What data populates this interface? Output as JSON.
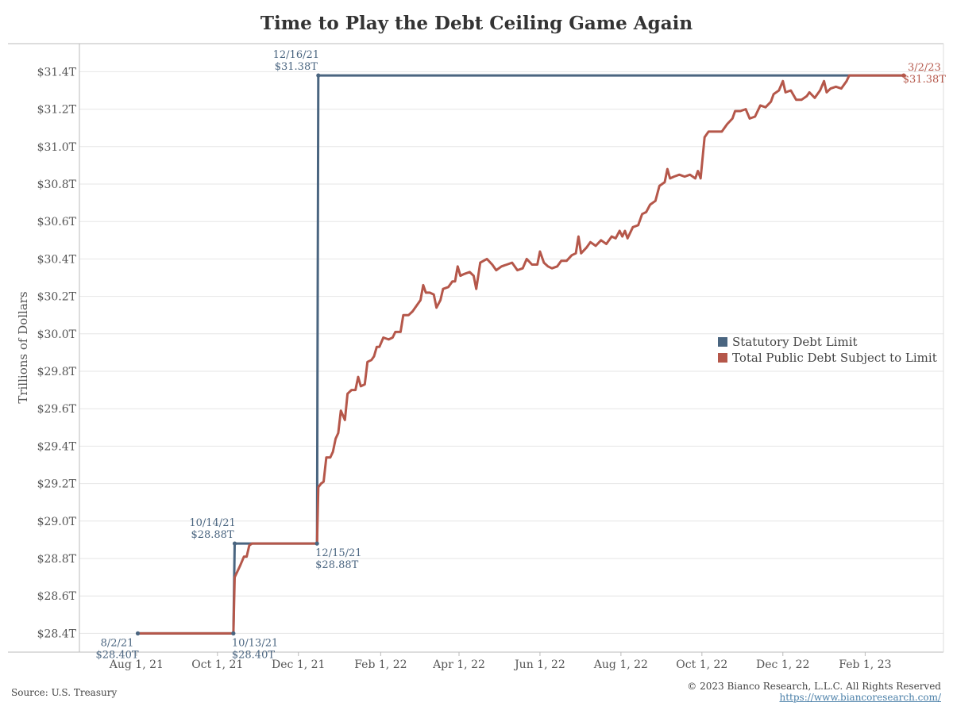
{
  "title": "Time to Play the Debt Ceiling Game Again",
  "footer": {
    "source": "Source: U.S. Treasury",
    "copyright": "© 2023 Bianco Research, L.L.C. All Rights Reserved",
    "url": "https://www.biancoresearch.com/"
  },
  "colors": {
    "limit": "#4a6580",
    "debt": "#b5574a",
    "grid": "#e6e6e6",
    "axis": "#bbbbbb"
  },
  "chart_data": {
    "type": "line",
    "title": "Time to Play the Debt Ceiling Game Again",
    "ylabel": "Trillions of Dollars",
    "xlabel": "",
    "ylim": [
      28.3,
      31.55
    ],
    "xlim": [
      "2021-06-19",
      "2023-04-01"
    ],
    "grid": true,
    "legend_position": "right",
    "y_ticks": [
      28.4,
      28.6,
      28.8,
      29.0,
      29.2,
      29.4,
      29.6,
      29.8,
      30.0,
      30.2,
      30.4,
      30.6,
      30.8,
      31.0,
      31.2,
      31.4
    ],
    "y_tick_labels": [
      "$28.4T",
      "$28.6T",
      "$28.8T",
      "$29.0T",
      "$29.2T",
      "$29.4T",
      "$29.6T",
      "$29.8T",
      "$30.0T",
      "$30.2T",
      "$30.4T",
      "$30.6T",
      "$30.8T",
      "$31.0T",
      "$31.2T",
      "$31.4T"
    ],
    "x_ticks": [
      "2021-08-01",
      "2021-10-01",
      "2021-12-01",
      "2022-02-01",
      "2022-04-01",
      "2022-06-01",
      "2022-08-01",
      "2022-10-01",
      "2022-12-01",
      "2023-02-01"
    ],
    "x_tick_labels": [
      "Aug 1, 21",
      "Oct 1, 21",
      "Dec 1, 21",
      "Feb 1, 22",
      "Apr 1, 22",
      "Jun 1, 22",
      "Aug 1, 22",
      "Oct 1, 22",
      "Dec 1, 22",
      "Feb 1, 23"
    ],
    "series": [
      {
        "name": "Statutory Debt Limit",
        "color": "#4a6580",
        "points": [
          [
            "2021-08-02",
            28.4
          ],
          [
            "2021-10-13",
            28.4
          ],
          [
            "2021-10-14",
            28.88
          ],
          [
            "2021-12-15",
            28.88
          ],
          [
            "2021-12-16",
            31.38
          ],
          [
            "2023-03-02",
            31.38
          ]
        ]
      },
      {
        "name": "Total Public Debt Subject to Limit",
        "color": "#b5574a",
        "points": [
          [
            "2021-08-02",
            28.4
          ],
          [
            "2021-10-13",
            28.4
          ],
          [
            "2021-10-14",
            28.7
          ],
          [
            "2021-10-18",
            28.76
          ],
          [
            "2021-10-21",
            28.81
          ],
          [
            "2021-10-23",
            28.81
          ],
          [
            "2021-10-25",
            28.87
          ],
          [
            "2021-10-27",
            28.88
          ],
          [
            "2021-12-15",
            28.88
          ],
          [
            "2021-12-16",
            29.18
          ],
          [
            "2021-12-18",
            29.2
          ],
          [
            "2021-12-20",
            29.21
          ],
          [
            "2021-12-22",
            29.34
          ],
          [
            "2021-12-25",
            29.34
          ],
          [
            "2021-12-27",
            29.37
          ],
          [
            "2021-12-29",
            29.44
          ],
          [
            "2021-12-31",
            29.47
          ],
          [
            "2022-01-02",
            29.59
          ],
          [
            "2022-01-05",
            29.54
          ],
          [
            "2022-01-07",
            29.68
          ],
          [
            "2022-01-10",
            29.7
          ],
          [
            "2022-01-13",
            29.7
          ],
          [
            "2022-01-15",
            29.77
          ],
          [
            "2022-01-17",
            29.72
          ],
          [
            "2022-01-20",
            29.73
          ],
          [
            "2022-01-22",
            29.85
          ],
          [
            "2022-01-25",
            29.86
          ],
          [
            "2022-01-27",
            29.88
          ],
          [
            "2022-01-29",
            29.93
          ],
          [
            "2022-01-31",
            29.93
          ],
          [
            "2022-02-03",
            29.98
          ],
          [
            "2022-02-07",
            29.97
          ],
          [
            "2022-02-10",
            29.98
          ],
          [
            "2022-02-12",
            30.01
          ],
          [
            "2022-02-16",
            30.01
          ],
          [
            "2022-02-18",
            30.1
          ],
          [
            "2022-02-22",
            30.1
          ],
          [
            "2022-02-25",
            30.12
          ],
          [
            "2022-02-28",
            30.15
          ],
          [
            "2022-03-03",
            30.18
          ],
          [
            "2022-03-05",
            30.26
          ],
          [
            "2022-03-07",
            30.22
          ],
          [
            "2022-03-10",
            30.22
          ],
          [
            "2022-03-13",
            30.21
          ],
          [
            "2022-03-15",
            30.14
          ],
          [
            "2022-03-18",
            30.18
          ],
          [
            "2022-03-20",
            30.24
          ],
          [
            "2022-03-24",
            30.25
          ],
          [
            "2022-03-27",
            30.28
          ],
          [
            "2022-03-29",
            30.28
          ],
          [
            "2022-03-31",
            30.36
          ],
          [
            "2022-04-02",
            30.31
          ],
          [
            "2022-04-05",
            30.32
          ],
          [
            "2022-04-09",
            30.33
          ],
          [
            "2022-04-12",
            30.31
          ],
          [
            "2022-04-14",
            30.24
          ],
          [
            "2022-04-17",
            30.38
          ],
          [
            "2022-04-22",
            30.4
          ],
          [
            "2022-04-26",
            30.37
          ],
          [
            "2022-04-29",
            30.34
          ],
          [
            "2022-05-03",
            30.36
          ],
          [
            "2022-05-07",
            30.37
          ],
          [
            "2022-05-11",
            30.38
          ],
          [
            "2022-05-15",
            30.34
          ],
          [
            "2022-05-19",
            30.35
          ],
          [
            "2022-05-22",
            30.4
          ],
          [
            "2022-05-26",
            30.37
          ],
          [
            "2022-05-30",
            30.37
          ],
          [
            "2022-06-01",
            30.44
          ],
          [
            "2022-06-04",
            30.38
          ],
          [
            "2022-06-07",
            30.36
          ],
          [
            "2022-06-10",
            30.35
          ],
          [
            "2022-06-14",
            30.36
          ],
          [
            "2022-06-17",
            30.39
          ],
          [
            "2022-06-21",
            30.39
          ],
          [
            "2022-06-25",
            30.42
          ],
          [
            "2022-06-28",
            30.43
          ],
          [
            "2022-06-30",
            30.52
          ],
          [
            "2022-07-02",
            30.43
          ],
          [
            "2022-07-06",
            30.46
          ],
          [
            "2022-07-09",
            30.49
          ],
          [
            "2022-07-13",
            30.47
          ],
          [
            "2022-07-17",
            30.5
          ],
          [
            "2022-07-21",
            30.48
          ],
          [
            "2022-07-25",
            30.52
          ],
          [
            "2022-07-28",
            30.51
          ],
          [
            "2022-07-31",
            30.55
          ],
          [
            "2022-08-02",
            30.52
          ],
          [
            "2022-08-04",
            30.55
          ],
          [
            "2022-08-06",
            30.51
          ],
          [
            "2022-08-10",
            30.57
          ],
          [
            "2022-08-14",
            30.58
          ],
          [
            "2022-08-17",
            30.64
          ],
          [
            "2022-08-20",
            30.65
          ],
          [
            "2022-08-23",
            30.69
          ],
          [
            "2022-08-27",
            30.71
          ],
          [
            "2022-08-30",
            30.79
          ],
          [
            "2022-09-03",
            30.81
          ],
          [
            "2022-09-05",
            30.88
          ],
          [
            "2022-09-07",
            30.83
          ],
          [
            "2022-09-10",
            30.84
          ],
          [
            "2022-09-14",
            30.85
          ],
          [
            "2022-09-18",
            30.84
          ],
          [
            "2022-09-22",
            30.85
          ],
          [
            "2022-09-26",
            30.83
          ],
          [
            "2022-09-28",
            30.87
          ],
          [
            "2022-09-30",
            30.83
          ],
          [
            "2022-10-03",
            31.05
          ],
          [
            "2022-10-06",
            31.08
          ],
          [
            "2022-10-12",
            31.08
          ],
          [
            "2022-10-16",
            31.08
          ],
          [
            "2022-10-20",
            31.12
          ],
          [
            "2022-10-24",
            31.15
          ],
          [
            "2022-10-26",
            31.19
          ],
          [
            "2022-10-30",
            31.19
          ],
          [
            "2022-11-03",
            31.2
          ],
          [
            "2022-11-06",
            31.15
          ],
          [
            "2022-11-10",
            31.16
          ],
          [
            "2022-11-14",
            31.22
          ],
          [
            "2022-11-18",
            31.21
          ],
          [
            "2022-11-22",
            31.24
          ],
          [
            "2022-11-24",
            31.28
          ],
          [
            "2022-11-28",
            31.3
          ],
          [
            "2022-12-01",
            31.35
          ],
          [
            "2022-12-03",
            31.29
          ],
          [
            "2022-12-07",
            31.3
          ],
          [
            "2022-12-11",
            31.25
          ],
          [
            "2022-12-15",
            31.25
          ],
          [
            "2022-12-19",
            31.27
          ],
          [
            "2022-12-21",
            31.29
          ],
          [
            "2022-12-25",
            31.26
          ],
          [
            "2022-12-29",
            31.3
          ],
          [
            "2023-01-01",
            31.35
          ],
          [
            "2023-01-03",
            31.29
          ],
          [
            "2023-01-06",
            31.31
          ],
          [
            "2023-01-10",
            31.32
          ],
          [
            "2023-01-14",
            31.31
          ],
          [
            "2023-01-18",
            31.35
          ],
          [
            "2023-01-20",
            31.38
          ],
          [
            "2023-03-02",
            31.38
          ]
        ]
      }
    ],
    "annotations": [
      {
        "series": 0,
        "date": "2021-08-02",
        "value": 28.4,
        "lines": [
          "8/2/21",
          "$28.40T"
        ],
        "pos": "below-left"
      },
      {
        "series": 0,
        "date": "2021-10-13",
        "value": 28.4,
        "lines": [
          "10/13/21",
          "$28.40T"
        ],
        "pos": "below-right"
      },
      {
        "series": 0,
        "date": "2021-10-14",
        "value": 28.88,
        "lines": [
          "10/14/21",
          "$28.88T"
        ],
        "pos": "above-left"
      },
      {
        "series": 0,
        "date": "2021-12-15",
        "value": 28.88,
        "lines": [
          "12/15/21",
          "$28.88T"
        ],
        "pos": "below-right"
      },
      {
        "series": 0,
        "date": "2021-12-16",
        "value": 31.38,
        "lines": [
          "12/16/21",
          "$31.38T"
        ],
        "pos": "above-left"
      },
      {
        "series": 1,
        "date": "2023-03-02",
        "value": 31.38,
        "lines": [
          "3/2/23",
          "$31.38T"
        ],
        "pos": "right"
      }
    ]
  }
}
